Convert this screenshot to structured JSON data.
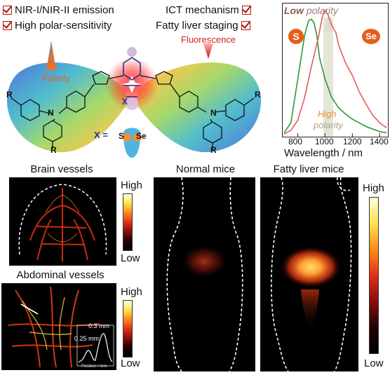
{
  "features_left": [
    "NIR-I/NIR-II emission",
    "High polar-sensitivity"
  ],
  "features_right": [
    "ICT mechanism",
    "Fatty liver staging"
  ],
  "molecule": {
    "polarity_label": "Polarity",
    "fluorescence_label": "Fluorescence",
    "x_label": "X =",
    "x_options": [
      "S",
      "Se"
    ],
    "r_label": "R",
    "n_label": "N"
  },
  "spectrum": {
    "low_word": "Low",
    "low_rest": " polarity",
    "high_word": "High",
    "high_rest": "polarity",
    "s_badge": "S",
    "se_badge": "Se",
    "xlabel": "Wavelength / nm",
    "ticks": [
      "800",
      "1000",
      "1200",
      "1400"
    ]
  },
  "chart_data": {
    "type": "line",
    "xlabel": "Wavelength / nm",
    "xlim": [
      700,
      1450
    ],
    "x_ticks": [
      800,
      1000,
      1200,
      1400
    ],
    "series": [
      {
        "name": "S",
        "color": "#2a9a3a",
        "x": [
          700,
          750,
          800,
          850,
          880,
          900,
          920,
          940,
          960,
          1000,
          1050,
          1100,
          1150,
          1200,
          1250,
          1300,
          1350,
          1400,
          1450
        ],
        "y": [
          0.02,
          0.1,
          0.45,
          0.8,
          0.92,
          0.93,
          0.9,
          0.8,
          0.62,
          0.45,
          0.3,
          0.22,
          0.17,
          0.13,
          0.1,
          0.07,
          0.05,
          0.03,
          0.02
        ]
      },
      {
        "name": "Se",
        "color": "#e8585a",
        "x": [
          700,
          750,
          800,
          850,
          900,
          950,
          980,
          1000,
          1020,
          1050,
          1080,
          1100,
          1150,
          1200,
          1250,
          1300,
          1350,
          1400,
          1450
        ],
        "y": [
          0.01,
          0.04,
          0.12,
          0.3,
          0.55,
          0.78,
          0.95,
          1.0,
          0.97,
          0.88,
          0.82,
          0.72,
          0.58,
          0.48,
          0.35,
          0.25,
          0.16,
          0.1,
          0.06
        ]
      }
    ]
  },
  "panels": {
    "brain_title": "Brain vessels",
    "abdominal_title": "Abdominal vessels",
    "normal_title": "Normal mice",
    "fatty_title": "Fatty liver mice",
    "high": "High",
    "low": "Low",
    "profile_labels": [
      "0.3 mm",
      "0.25 mm"
    ],
    "profile_xlabel": "Position / mm"
  }
}
